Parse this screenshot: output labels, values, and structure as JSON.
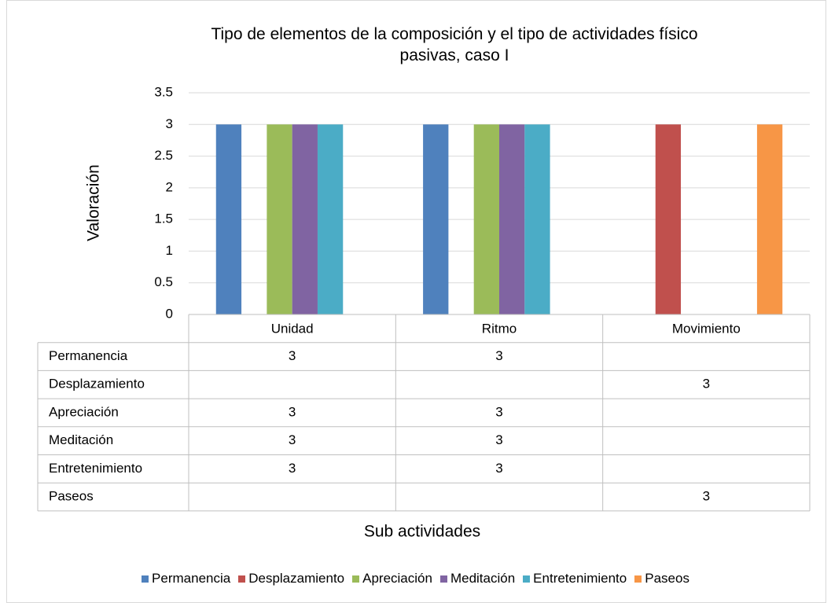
{
  "chart_data": {
    "type": "bar",
    "title": "Tipo de elementos de la composición y el tipo de actividades físico pasivas, caso I",
    "y_label": "Valoración",
    "x_label": "Sub actividades",
    "categories": [
      "Unidad",
      "Ritmo",
      "Movimiento"
    ],
    "series": [
      {
        "name": "Permanencia",
        "color": "#4f81bd",
        "values": [
          3,
          3,
          null
        ]
      },
      {
        "name": "Desplazamiento",
        "color": "#c0504d",
        "values": [
          null,
          null,
          3
        ]
      },
      {
        "name": "Apreciación",
        "color": "#9bbb59",
        "values": [
          3,
          3,
          null
        ]
      },
      {
        "name": "Meditación",
        "color": "#8064a2",
        "values": [
          3,
          3,
          null
        ]
      },
      {
        "name": "Entretenimiento",
        "color": "#4bacc6",
        "values": [
          3,
          3,
          null
        ]
      },
      {
        "name": "Paseos",
        "color": "#f79646",
        "values": [
          null,
          null,
          3
        ]
      }
    ],
    "ylim": [
      0,
      3.5
    ],
    "yticks": [
      0,
      0.5,
      1,
      1.5,
      2,
      2.5,
      3,
      3.5
    ],
    "grid": true,
    "legend": "bottom",
    "data_table": true
  }
}
